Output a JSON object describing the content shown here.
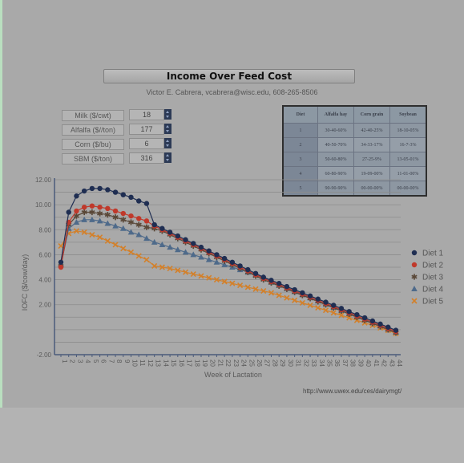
{
  "header": {
    "title": "Income Over Feed Cost",
    "author": "Victor E. Cabrera, vcabrera@wisc.edu, 608-265-8506"
  },
  "prices": [
    {
      "label": "Milk ($/cwt)",
      "value": "18"
    },
    {
      "label": "Alfalfa ($//ton)",
      "value": "177"
    },
    {
      "label": "Corn ($/bu)",
      "value": "6"
    },
    {
      "label": "SBM ($/ton)",
      "value": "316"
    }
  ],
  "diet_table": {
    "headers": [
      "Diet",
      "Alfalfa hay",
      "Corn grain",
      "Soybean"
    ],
    "rows": [
      [
        "1",
        "30-40-60%",
        "42-40-25%",
        "18-10-05%"
      ],
      [
        "2",
        "40-50-70%",
        "34-33-17%",
        "16-7-3%"
      ],
      [
        "3",
        "50-60-80%",
        "27-25-9%",
        "13-05-01%"
      ],
      [
        "4",
        "60-80-90%",
        "19-09-00%",
        "11-01-00%"
      ],
      [
        "5",
        "90-90-90%",
        "00-00-00%",
        "00-00-00%"
      ]
    ]
  },
  "chart_data": {
    "type": "line",
    "xlabel": "Week of Lactation",
    "ylabel": "IOFC ($/cow/day)",
    "ylim": [
      -2.0,
      12.0
    ],
    "y_ticks": [
      "-2.00",
      "2.00",
      "4.00",
      "6.00",
      "8.00",
      "10.00",
      "12.00"
    ],
    "grid": true,
    "legend_position": "right",
    "x": [
      1,
      2,
      3,
      4,
      5,
      6,
      7,
      8,
      9,
      10,
      11,
      12,
      13,
      14,
      15,
      16,
      17,
      18,
      19,
      20,
      21,
      22,
      23,
      24,
      25,
      26,
      27,
      28,
      29,
      30,
      31,
      32,
      33,
      34,
      35,
      36,
      37,
      38,
      39,
      40,
      41,
      42,
      43,
      44
    ],
    "series": [
      {
        "name": "Diet 1",
        "color": "#1f2e52",
        "marker": "circle",
        "values": [
          5.4,
          9.4,
          10.7,
          11.1,
          11.3,
          11.3,
          11.2,
          11.0,
          10.8,
          10.6,
          10.3,
          10.1,
          8.4,
          8.1,
          7.8,
          7.5,
          7.2,
          6.9,
          6.6,
          6.3,
          6.0,
          5.7,
          5.4,
          5.1,
          4.8,
          4.5,
          4.2,
          3.95,
          3.7,
          3.45,
          3.2,
          2.95,
          2.7,
          2.45,
          2.2,
          1.95,
          1.7,
          1.45,
          1.2,
          0.95,
          0.7,
          0.45,
          0.2,
          -0.05
        ]
      },
      {
        "name": "Diet 2",
        "color": "#c0392b",
        "marker": "circle",
        "values": [
          5.0,
          8.6,
          9.5,
          9.8,
          9.9,
          9.8,
          9.7,
          9.5,
          9.3,
          9.1,
          8.9,
          8.7,
          8.3,
          8.0,
          7.7,
          7.4,
          7.1,
          6.8,
          6.5,
          6.2,
          5.9,
          5.6,
          5.3,
          5.0,
          4.7,
          4.4,
          4.1,
          3.85,
          3.6,
          3.35,
          3.1,
          2.85,
          2.6,
          2.35,
          2.1,
          1.85,
          1.6,
          1.35,
          1.1,
          0.85,
          0.6,
          0.35,
          0.1,
          -0.15
        ]
      },
      {
        "name": "Diet 3",
        "color": "#5a4838",
        "marker": "star",
        "values": [
          5.1,
          8.4,
          9.1,
          9.4,
          9.4,
          9.3,
          9.2,
          9.0,
          8.8,
          8.6,
          8.4,
          8.2,
          8.1,
          7.9,
          7.6,
          7.3,
          7.0,
          6.7,
          6.4,
          6.1,
          5.8,
          5.5,
          5.2,
          4.9,
          4.6,
          4.3,
          4.0,
          3.75,
          3.5,
          3.25,
          3.0,
          2.75,
          2.5,
          2.25,
          2.0,
          1.75,
          1.5,
          1.25,
          1.0,
          0.75,
          0.5,
          0.25,
          0.0,
          -0.25
        ]
      },
      {
        "name": "Diet 4",
        "color": "#4e6a8a",
        "marker": "triangle",
        "values": [
          5.2,
          8.1,
          8.6,
          8.8,
          8.8,
          8.7,
          8.5,
          8.3,
          8.1,
          7.8,
          7.6,
          7.3,
          7.0,
          6.8,
          6.6,
          6.4,
          6.2,
          6.0,
          5.8,
          5.6,
          5.4,
          5.2,
          5.0,
          4.8,
          4.6,
          4.4,
          4.2,
          3.8,
          3.55,
          3.3,
          3.05,
          2.8,
          2.55,
          2.3,
          2.05,
          1.8,
          1.55,
          1.3,
          1.05,
          0.8,
          0.55,
          0.3,
          0.05,
          -0.2
        ]
      },
      {
        "name": "Diet 5",
        "color": "#d3802a",
        "marker": "cross",
        "values": [
          6.7,
          7.7,
          7.9,
          7.8,
          7.6,
          7.4,
          7.1,
          6.8,
          6.5,
          6.2,
          5.9,
          5.6,
          5.1,
          5.0,
          4.9,
          4.75,
          4.6,
          4.45,
          4.3,
          4.15,
          4.0,
          3.85,
          3.7,
          3.55,
          3.4,
          3.25,
          3.1,
          2.95,
          2.75,
          2.55,
          2.35,
          2.15,
          1.95,
          1.75,
          1.55,
          1.35,
          1.15,
          0.95,
          0.75,
          0.55,
          0.35,
          0.15,
          -0.05,
          -0.3
        ]
      }
    ]
  },
  "footer": {
    "url": "http://www.uwex.edu/ces/dairymgt/"
  }
}
